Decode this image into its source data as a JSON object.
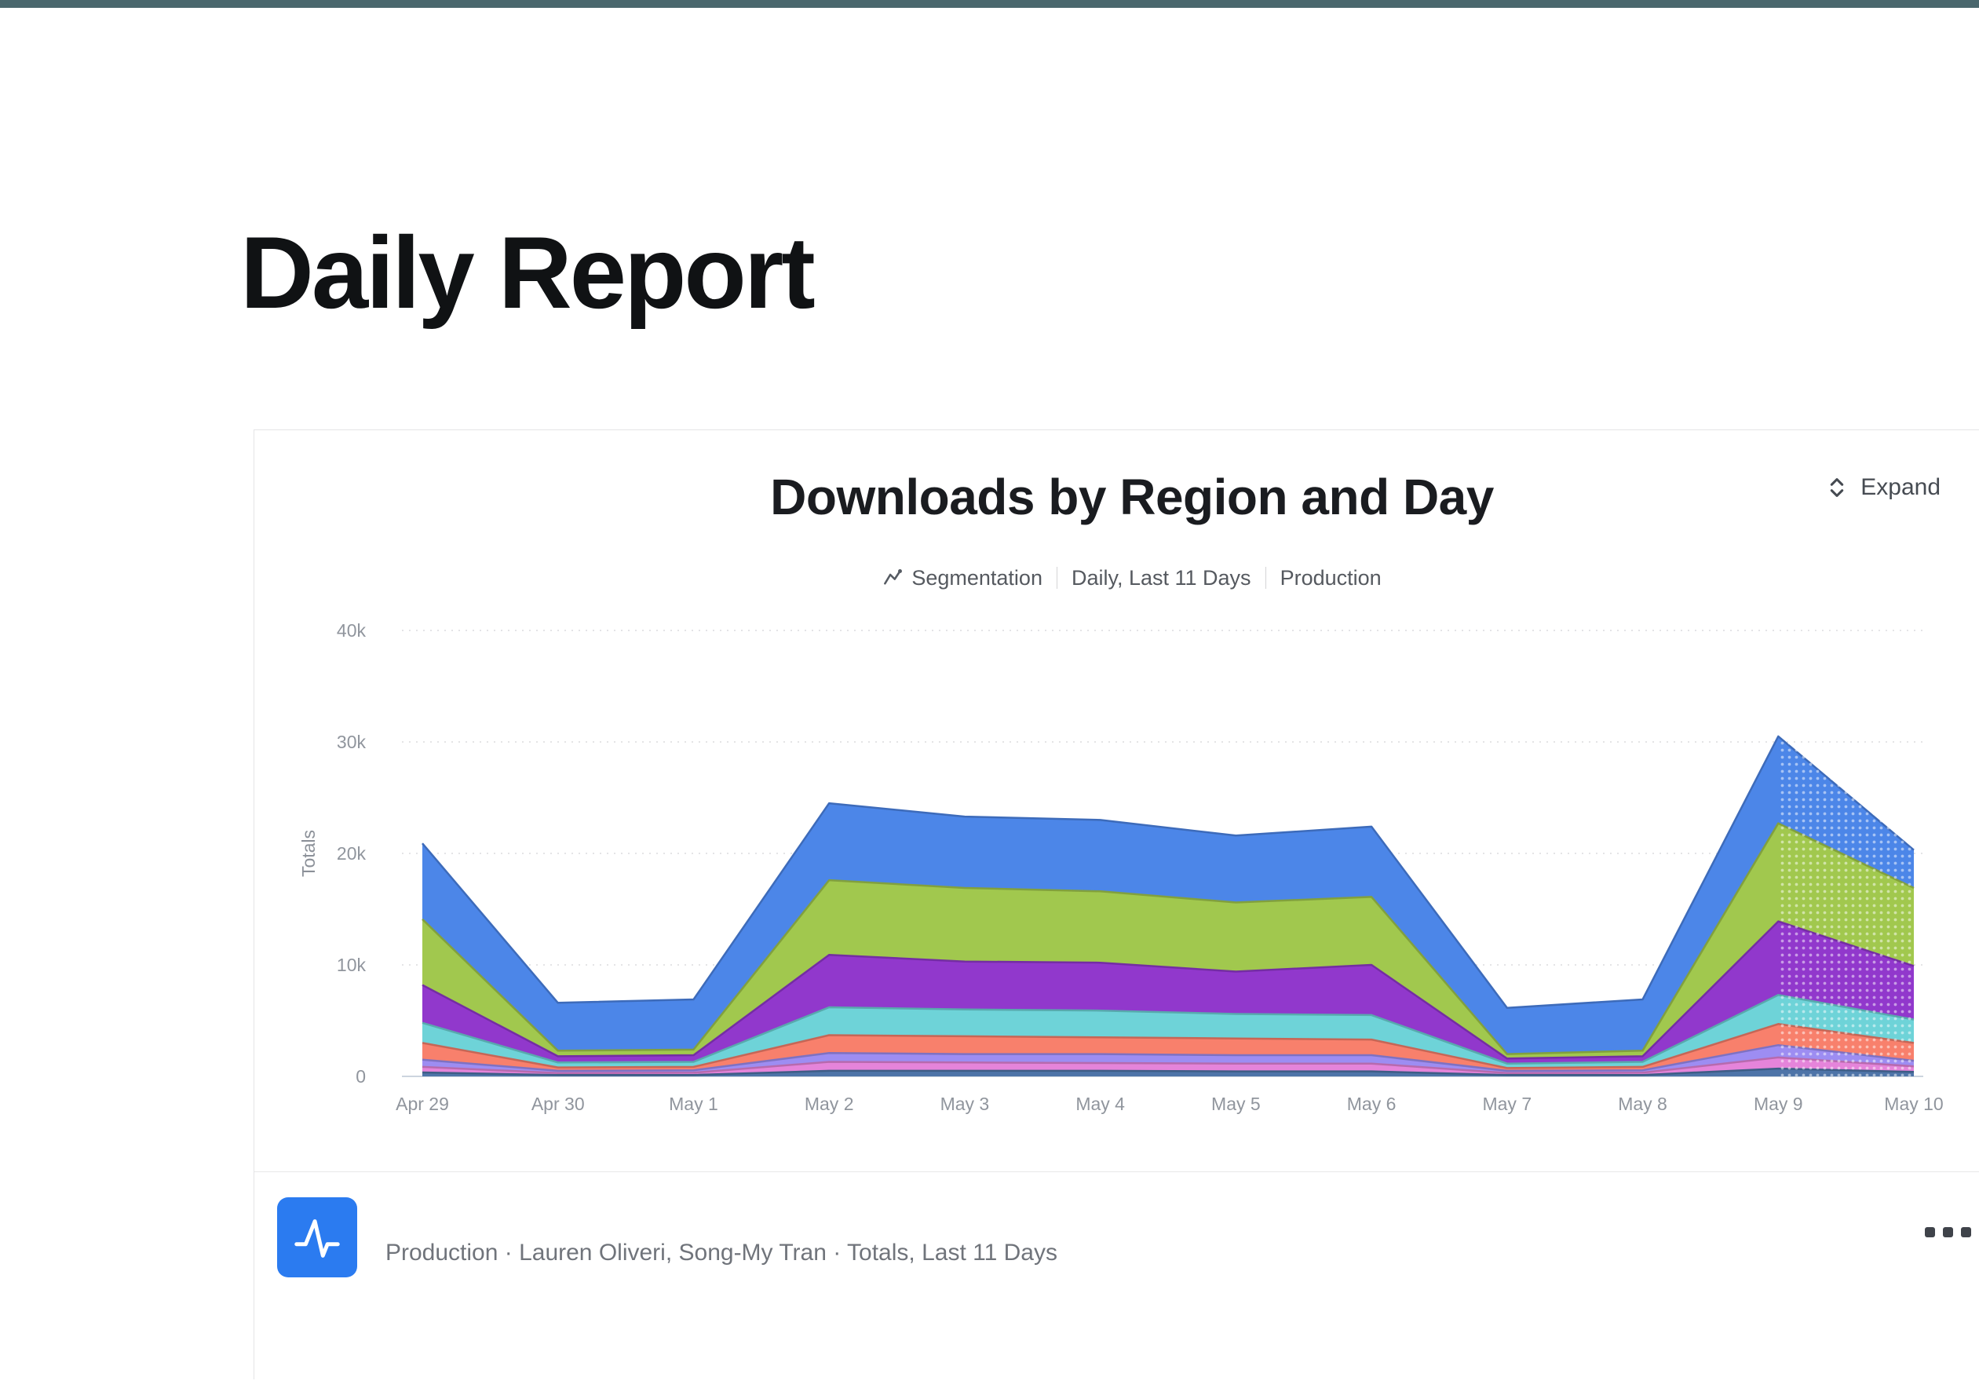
{
  "page": {
    "top_bar_color": "#4a676d",
    "title": "Daily Report"
  },
  "card": {
    "chart_title": "Downloads by Region and Day",
    "meta": {
      "chart_type_label": "Segmentation",
      "range_label": "Daily, Last 11 Days",
      "project_label": "Production"
    },
    "expand_label": "Expand",
    "footer": {
      "text": "Production · Lauren Oliveri, Song-My Tran · Totals, Last 11 Days",
      "logo_color": "#2b7bf0",
      "logo_icon": "amplitude-waveform-a",
      "menu_icon": "ellipsis"
    }
  },
  "chart_data": {
    "type": "area",
    "stacked": true,
    "title": "Downloads by Region and Day",
    "xlabel": "",
    "ylabel": "Totals",
    "categories": [
      "Apr 29",
      "Apr 30",
      "May 1",
      "May 2",
      "May 3",
      "May 4",
      "May 5",
      "May 6",
      "May 7",
      "May 8",
      "May 9",
      "May 10"
    ],
    "series": [
      {
        "name": "steel-blue-segment",
        "color": "#4e74a8",
        "values": [
          350,
          120,
          130,
          500,
          500,
          500,
          450,
          450,
          120,
          130,
          700,
          400
        ]
      },
      {
        "name": "pink-segment",
        "color": "#e584da",
        "values": [
          500,
          180,
          200,
          800,
          750,
          700,
          700,
          700,
          180,
          200,
          1000,
          500
        ]
      },
      {
        "name": "periwinkle-segment",
        "color": "#9d8df2",
        "values": [
          650,
          200,
          220,
          800,
          750,
          800,
          750,
          750,
          200,
          220,
          1100,
          500
        ]
      },
      {
        "name": "salmon-segment",
        "color": "#f8806c",
        "values": [
          1500,
          300,
          300,
          1600,
          1600,
          1500,
          1500,
          1400,
          250,
          300,
          1900,
          1600
        ]
      },
      {
        "name": "teal-segment",
        "color": "#6ed3d8",
        "values": [
          1800,
          450,
          450,
          2500,
          2400,
          2400,
          2200,
          2200,
          400,
          450,
          2600,
          2100
        ]
      },
      {
        "name": "purple-segment",
        "color": "#9138cc",
        "values": [
          3400,
          550,
          600,
          4700,
          4300,
          4300,
          3800,
          4500,
          450,
          500,
          6600,
          4800
        ]
      },
      {
        "name": "green-segment",
        "color": "#a1c84e",
        "values": [
          5900,
          500,
          500,
          6700,
          6600,
          6400,
          6200,
          6100,
          400,
          500,
          8800,
          7000
        ]
      },
      {
        "name": "blue-segment",
        "color": "#4c86e8",
        "values": [
          6800,
          4300,
          4500,
          6900,
          6400,
          6400,
          6000,
          6300,
          4150,
          4600,
          7800,
          3400
        ]
      }
    ],
    "ylim": [
      0,
      40000
    ],
    "yticks": [
      0,
      10000,
      20000,
      30000,
      40000
    ],
    "ytick_labels": [
      "0",
      "10k",
      "20k",
      "30k",
      "40k"
    ],
    "grid": "horizontal-dotted",
    "legend": "none",
    "provisional_last_segment": true
  }
}
